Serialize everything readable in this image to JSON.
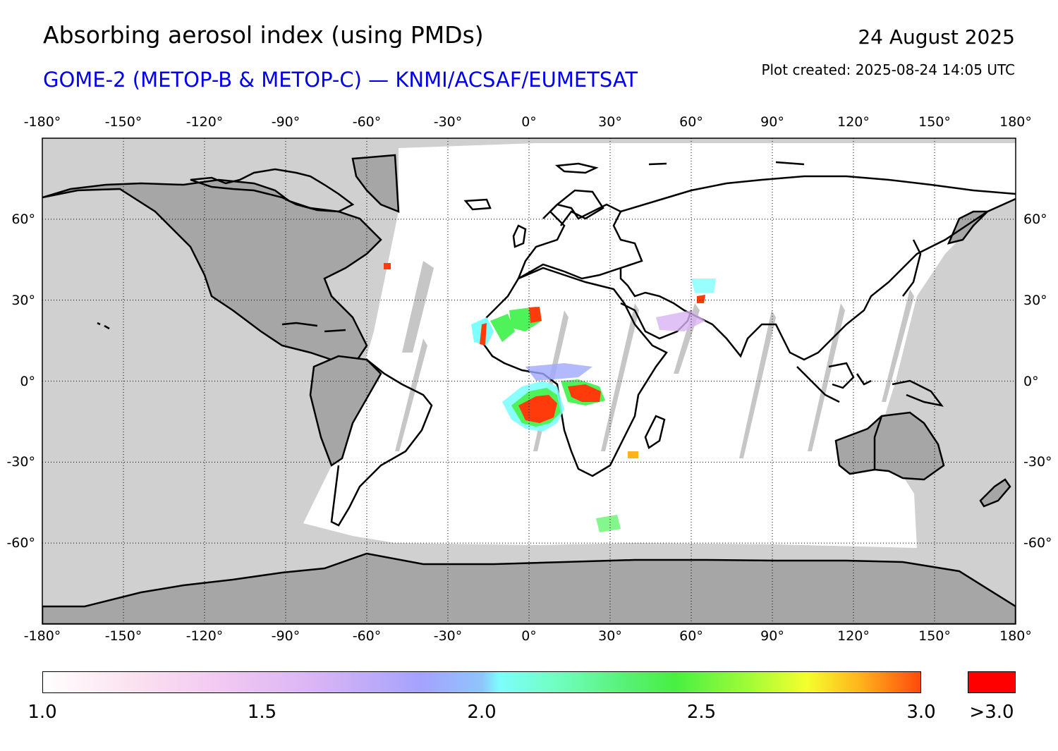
{
  "header": {
    "title": "Absorbing aerosol index (using PMDs)",
    "subtitle": "GOME-2 (METOP-B & METOP-C) — KNMI/ACSAF/EUMETSAT",
    "date": "24 August 2025",
    "created": "Plot created: 2025-08-24 14:05 UTC"
  },
  "axes": {
    "lon_labels": [
      "-180°",
      "-150°",
      "-120°",
      "-90°",
      "-60°",
      "-30°",
      "0°",
      "30°",
      "60°",
      "90°",
      "120°",
      "150°",
      "180°"
    ],
    "lat_labels": [
      "60°",
      "30°",
      "0°",
      "-30°",
      "-60°"
    ],
    "grid": "dotted"
  },
  "map": {
    "projection": "equirectangular",
    "extent": {
      "lon": [
        -180,
        180
      ],
      "lat": [
        -90,
        90
      ]
    },
    "colors": {
      "ocean_no_data": "#d0d0d0",
      "land_no_data": "#a6a6a6",
      "measured": "#ffffff",
      "coastline": "#000000"
    },
    "aerosol_hotspots": [
      {
        "region": "central-africa",
        "level": ">3.0"
      },
      {
        "region": "west-africa-coast",
        "level": "2.5-3.0"
      },
      {
        "region": "sahara",
        "level": "2.0-3.0"
      }
    ]
  },
  "colorbar": {
    "ticks": [
      "1.0",
      "1.5",
      "2.0",
      "2.5",
      "3.0"
    ],
    "overflow_label": ">3.0",
    "overflow_color": "#ff0000",
    "range": [
      1.0,
      3.0
    ]
  }
}
